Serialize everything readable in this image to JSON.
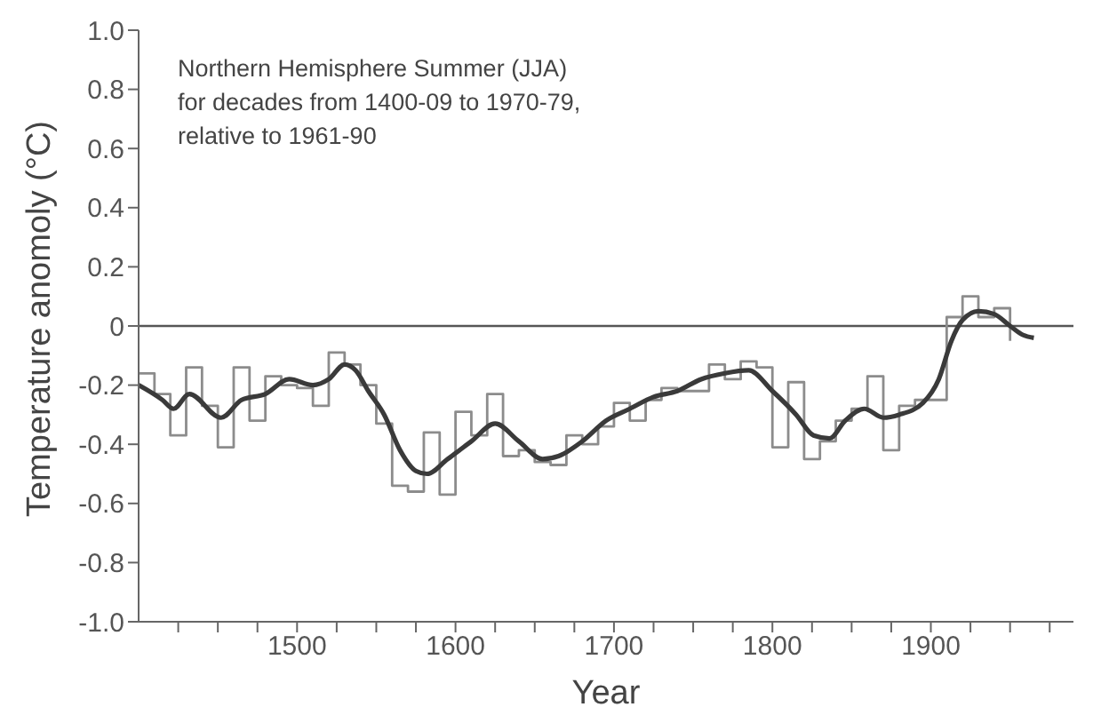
{
  "chart_data": {
    "type": "step",
    "xlabel": "Year",
    "ylabel": "Temperature anomoly (°C)",
    "annotations": [
      "Northern Hemisphere Summer (JJA)\nfor decades from 1400-09 to 1970-79,\nrelative to 1961-90"
    ],
    "xlim": [
      1400,
      1990
    ],
    "xticks": [
      {
        "value": 1425,
        "label": null
      },
      {
        "value": 1450,
        "label": null
      },
      {
        "value": 1475,
        "label": null
      },
      1500,
      {
        "value": 1525,
        "label": null
      },
      {
        "value": 1550,
        "label": null
      },
      {
        "value": 1575,
        "label": null
      },
      1600,
      {
        "value": 1625,
        "label": null
      },
      {
        "value": 1650,
        "label": null
      },
      {
        "value": 1675,
        "label": null
      },
      1700,
      {
        "value": 1725,
        "label": null
      },
      {
        "value": 1750,
        "label": null
      },
      {
        "value": 1775,
        "label": null
      },
      1800,
      {
        "value": 1825,
        "label": null
      },
      {
        "value": 1850,
        "label": null
      },
      {
        "value": 1875,
        "label": null
      },
      1900,
      {
        "value": 1925,
        "label": null
      },
      {
        "value": 1950,
        "label": null
      },
      {
        "value": 1975,
        "label": null
      }
    ],
    "ylim": [
      -1,
      1
    ],
    "yticks": [
      {
        "value": -1,
        "label": "-1.0"
      },
      -0.8,
      -0.6,
      -0.4,
      -0.2,
      0,
      0.2,
      0.4,
      0.6,
      0.8,
      {
        "value": 1,
        "label": "1.0"
      }
    ],
    "ref_lines": [
      {
        "axis": "y",
        "value": 0,
        "color": "#555555"
      }
    ],
    "legend": false,
    "grid": false,
    "series": [
      {
        "color": "#8c8c8c",
        "x": [
          1400,
          1410,
          1420,
          1430,
          1440,
          1450,
          1460,
          1470,
          1480,
          1490,
          1500,
          1510,
          1520,
          1530,
          1540,
          1550,
          1560,
          1570,
          1580,
          1590,
          1600,
          1610,
          1620,
          1630,
          1640,
          1650,
          1660,
          1670,
          1680,
          1690,
          1700,
          1710,
          1720,
          1730,
          1740,
          1750,
          1760,
          1770,
          1780,
          1790,
          1800,
          1810,
          1820,
          1830,
          1840,
          1850,
          1860,
          1870,
          1880,
          1890,
          1900,
          1910,
          1920,
          1930,
          1940,
          1950
        ],
        "values": [
          -0.16,
          -0.23,
          -0.37,
          -0.14,
          -0.27,
          -0.41,
          -0.14,
          -0.32,
          -0.17,
          -0.2,
          -0.21,
          -0.27,
          -0.09,
          -0.13,
          -0.2,
          -0.33,
          -0.54,
          -0.56,
          -0.36,
          -0.57,
          -0.29,
          -0.37,
          -0.23,
          -0.44,
          -0.42,
          -0.46,
          -0.47,
          -0.37,
          -0.4,
          -0.34,
          -0.26,
          -0.32,
          -0.25,
          -0.21,
          -0.22,
          -0.22,
          -0.13,
          -0.18,
          -0.12,
          -0.14,
          -0.41,
          -0.19,
          -0.45,
          -0.39,
          -0.32,
          -0.28,
          -0.17,
          -0.42,
          -0.27,
          -0.25,
          -0.25,
          0.03,
          0.1,
          0.03,
          0.06,
          -0.05
        ]
      },
      {
        "type": "line",
        "color": "#3a3a3a",
        "x": [
          1400,
          1415,
          1422,
          1432,
          1452,
          1465,
          1480,
          1495,
          1510,
          1520,
          1530,
          1537,
          1545,
          1555,
          1565,
          1575,
          1582,
          1595,
          1610,
          1625,
          1640,
          1655,
          1665,
          1680,
          1695,
          1710,
          1725,
          1740,
          1755,
          1770,
          1785,
          1800,
          1815,
          1826,
          1836,
          1846,
          1858,
          1870,
          1880,
          1895,
          1905,
          1913,
          1920,
          1930,
          1940,
          1950,
          1958,
          1965
        ],
        "values": [
          -0.2,
          -0.25,
          -0.28,
          -0.23,
          -0.31,
          -0.25,
          -0.23,
          -0.18,
          -0.2,
          -0.18,
          -0.13,
          -0.15,
          -0.22,
          -0.3,
          -0.42,
          -0.49,
          -0.5,
          -0.45,
          -0.39,
          -0.33,
          -0.39,
          -0.45,
          -0.44,
          -0.39,
          -0.32,
          -0.28,
          -0.24,
          -0.22,
          -0.18,
          -0.16,
          -0.15,
          -0.22,
          -0.3,
          -0.37,
          -0.38,
          -0.32,
          -0.28,
          -0.31,
          -0.3,
          -0.26,
          -0.18,
          -0.05,
          0.02,
          0.05,
          0.04,
          0,
          -0.03,
          -0.04
        ]
      }
    ]
  }
}
